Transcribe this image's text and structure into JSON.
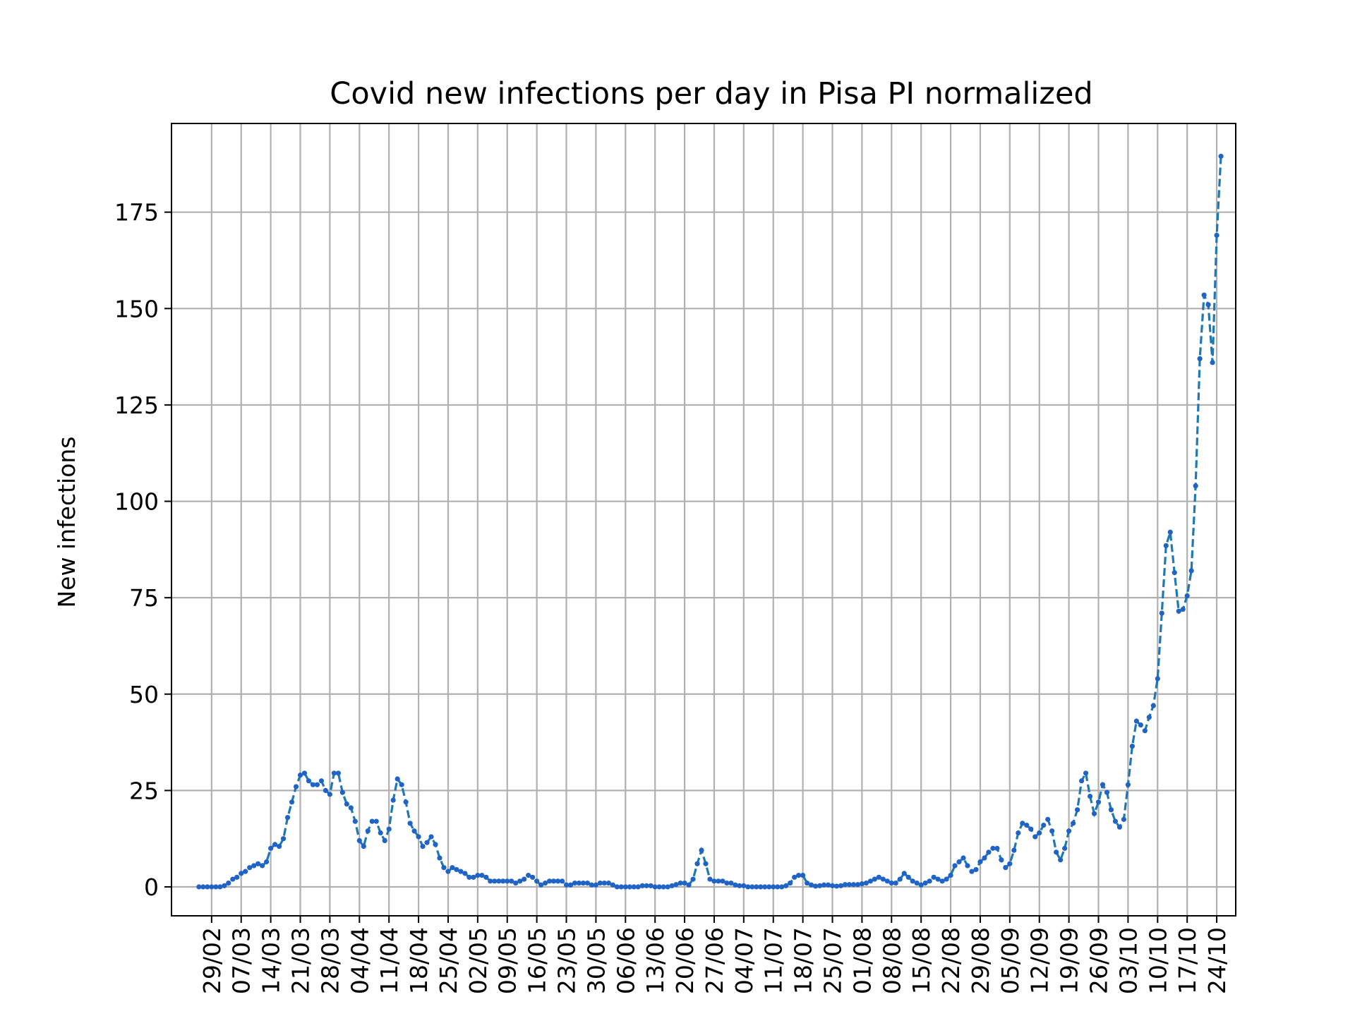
{
  "chart_data": {
    "type": "line",
    "title": "Covid new infections per day in Pisa PI normalized",
    "xlabel": "",
    "ylabel": "New infections",
    "ylim": [
      -7.5,
      198
    ],
    "yticks": [
      0,
      25,
      50,
      75,
      100,
      125,
      150,
      175
    ],
    "ytick_labels": [
      "0",
      "25",
      "50",
      "75",
      "100",
      "125",
      "150",
      "175"
    ],
    "x_start_date": "2020-02-26",
    "x_day_range": [
      -6.5,
      245.5
    ],
    "xticks": [
      3,
      10,
      17,
      24,
      31,
      38,
      45,
      52,
      59,
      66,
      73,
      80,
      87,
      94,
      101,
      108,
      115,
      122,
      129,
      136,
      143,
      150,
      157,
      164,
      171,
      178,
      185,
      192,
      199,
      206,
      213,
      220,
      227,
      234,
      241
    ],
    "xtick_labels": [
      "29/02",
      "07/03",
      "14/03",
      "21/03",
      "28/03",
      "04/04",
      "11/04",
      "18/04",
      "25/04",
      "02/05",
      "09/05",
      "16/05",
      "23/05",
      "30/05",
      "06/06",
      "13/06",
      "20/06",
      "27/06",
      "04/07",
      "11/07",
      "18/07",
      "25/07",
      "01/08",
      "08/08",
      "15/08",
      "22/08",
      "29/08",
      "05/09",
      "12/09",
      "19/09",
      "26/09",
      "03/10",
      "10/10",
      "17/10",
      "24/10"
    ],
    "grid": true,
    "series": [
      {
        "name": "",
        "color": "#1f77b4",
        "marker_color": "#1f63c7",
        "linestyle": "dashed",
        "values": [
          0,
          0,
          0,
          0,
          0,
          0,
          0.3,
          1,
          2,
          2.5,
          3.5,
          4,
          5,
          5.5,
          6,
          5.5,
          6.5,
          10,
          11,
          10.5,
          12.5,
          18,
          22,
          26,
          29,
          29.5,
          27.5,
          26.5,
          26.5,
          27.5,
          25,
          24,
          29.5,
          29.5,
          24.5,
          21.5,
          20.5,
          17,
          12,
          10.5,
          14.5,
          17,
          17,
          14,
          12,
          15,
          22.5,
          28,
          26.5,
          22,
          16.5,
          14.5,
          13,
          10.5,
          11.5,
          13,
          11,
          7.5,
          5,
          4,
          5,
          4.5,
          4,
          3.5,
          2.5,
          2.5,
          3,
          3,
          2.5,
          1.5,
          1.5,
          1.5,
          1.5,
          1.5,
          1.5,
          1,
          1.5,
          2,
          3,
          2.5,
          1.5,
          0.5,
          1,
          1.5,
          1.5,
          1.5,
          1.5,
          0.5,
          0.5,
          1,
          1,
          1,
          1,
          0.5,
          0.5,
          1,
          1,
          1,
          0.5,
          0,
          0,
          0,
          0,
          0,
          0,
          0.3,
          0.3,
          0.3,
          0,
          0,
          0,
          0,
          0.3,
          0.6,
          1,
          1,
          0.5,
          2,
          6,
          9.5,
          6,
          2,
          1.5,
          1.5,
          1.5,
          1,
          1,
          0.5,
          0.3,
          0.3,
          0,
          0,
          0,
          0,
          0,
          0,
          0,
          0,
          0,
          0.3,
          1,
          2.5,
          3,
          3,
          1,
          0.5,
          0.2,
          0.3,
          0.5,
          0.5,
          0.3,
          0.2,
          0.3,
          0.6,
          0.6,
          0.6,
          0.6,
          0.8,
          1,
          1.5,
          2,
          2.5,
          2,
          1.5,
          1,
          1,
          2,
          3.5,
          2.5,
          1.5,
          1,
          0.5,
          1,
          1.5,
          2.5,
          2,
          1.5,
          2,
          3,
          5.5,
          6.5,
          7.5,
          5.5,
          4,
          4.5,
          6.5,
          7.5,
          9,
          10,
          10,
          7,
          5,
          6,
          9.5,
          14,
          16.5,
          16,
          15,
          13,
          14,
          16,
          17.5,
          14.5,
          9,
          7,
          10,
          14.5,
          16.5,
          20,
          27.5,
          29.5,
          23.5,
          19,
          22,
          26.5,
          24.5,
          20,
          17,
          15.5,
          17.5,
          26.5,
          36.5,
          43,
          42,
          40.5,
          44,
          47,
          54,
          71,
          88.5,
          92,
          81.5,
          71.5,
          72,
          75.5,
          82,
          104,
          137,
          153.5,
          151,
          136,
          169,
          189.5
        ]
      }
    ]
  }
}
